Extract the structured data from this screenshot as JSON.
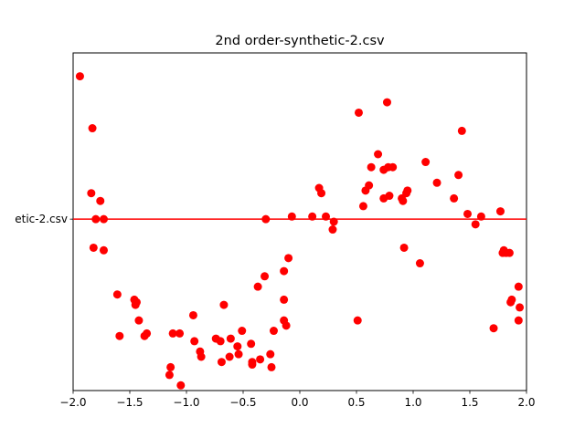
{
  "chart_data": {
    "type": "scatter",
    "title": "2nd order-synthetic-2.csv",
    "xlabel": "",
    "ylabel": "",
    "xlim": [
      -2.0,
      2.0
    ],
    "ylim": [
      -6.6,
      6.4
    ],
    "xticks": [
      "−2.0",
      "−1.5",
      "−1.0",
      "−0.5",
      "0.0",
      "0.5",
      "1.0",
      "1.5",
      "2.0"
    ],
    "xtick_values": [
      -2.0,
      -1.5,
      -1.0,
      -0.5,
      0.0,
      0.5,
      1.0,
      1.5,
      2.0
    ],
    "yticks": [
      "etic-2.csv"
    ],
    "ytick_values": [
      0.0
    ],
    "grid": false,
    "colors": {
      "points": "#ff0000",
      "line": "#ff0000",
      "axes": "#000000",
      "background": "#ffffff"
    },
    "line": {
      "y": 0.0
    },
    "series": [
      {
        "x": [
          -1.94,
          -1.83,
          -1.84,
          -1.8,
          -1.76,
          -1.73,
          -1.82,
          -1.73,
          -1.61,
          -1.59,
          -1.46,
          -1.45,
          -1.44,
          -1.42,
          -1.37,
          -1.35,
          -1.14,
          -1.12,
          -1.06,
          -1.15,
          -1.05,
          -0.93,
          -0.94,
          -0.88,
          -0.87,
          -0.74,
          -0.7,
          -0.69,
          -0.67,
          -0.62,
          -0.61,
          -0.55,
          -0.54,
          -0.51,
          -0.43,
          -0.42,
          -0.42,
          -0.37,
          -0.35,
          -0.31,
          -0.3,
          -0.26,
          -0.25,
          -0.23,
          -0.14,
          -0.14,
          -0.14,
          -0.1,
          -0.12,
          -0.07,
          0.11,
          0.17,
          0.19,
          0.23,
          0.29,
          0.3,
          0.52,
          0.56,
          0.51,
          0.58,
          0.61,
          0.63,
          0.69,
          0.74,
          0.78,
          0.79,
          0.82,
          0.74,
          0.77,
          0.9,
          0.91,
          0.94,
          0.95,
          0.92,
          1.06,
          1.11,
          1.21,
          1.36,
          1.43,
          1.4,
          1.48,
          1.55,
          1.6,
          1.77,
          1.71,
          1.8,
          1.82,
          1.79,
          1.85,
          1.87,
          1.86,
          1.93,
          1.94,
          1.93
        ],
        "y": [
          5.5,
          3.5,
          1.0,
          0.0,
          0.7,
          0.0,
          -1.1,
          -1.2,
          -2.9,
          -4.5,
          -3.1,
          -3.3,
          -3.2,
          -3.9,
          -4.5,
          -4.4,
          -5.7,
          -4.4,
          -4.4,
          -6.0,
          -6.4,
          -4.7,
          -3.7,
          -5.1,
          -5.3,
          -4.6,
          -4.7,
          -5.5,
          -3.3,
          -5.3,
          -4.6,
          -4.9,
          -5.2,
          -4.3,
          -4.8,
          -5.6,
          -5.5,
          -2.6,
          -5.4,
          -2.2,
          0.0,
          -5.2,
          -5.7,
          -4.3,
          -3.1,
          -2.0,
          -3.9,
          -1.5,
          -4.1,
          0.1,
          0.1,
          1.2,
          1.0,
          0.1,
          -0.4,
          -0.1,
          4.1,
          0.5,
          -3.9,
          1.1,
          1.3,
          2.0,
          2.5,
          0.8,
          2.0,
          0.9,
          2.0,
          1.9,
          4.5,
          0.8,
          0.7,
          1.0,
          1.1,
          -1.1,
          -1.7,
          2.2,
          1.4,
          0.8,
          3.4,
          1.7,
          0.2,
          -0.2,
          0.1,
          0.3,
          -4.2,
          -1.2,
          -1.3,
          -1.3,
          -1.3,
          -3.1,
          -3.2,
          -2.6,
          -3.4,
          -3.9
        ]
      }
    ]
  }
}
